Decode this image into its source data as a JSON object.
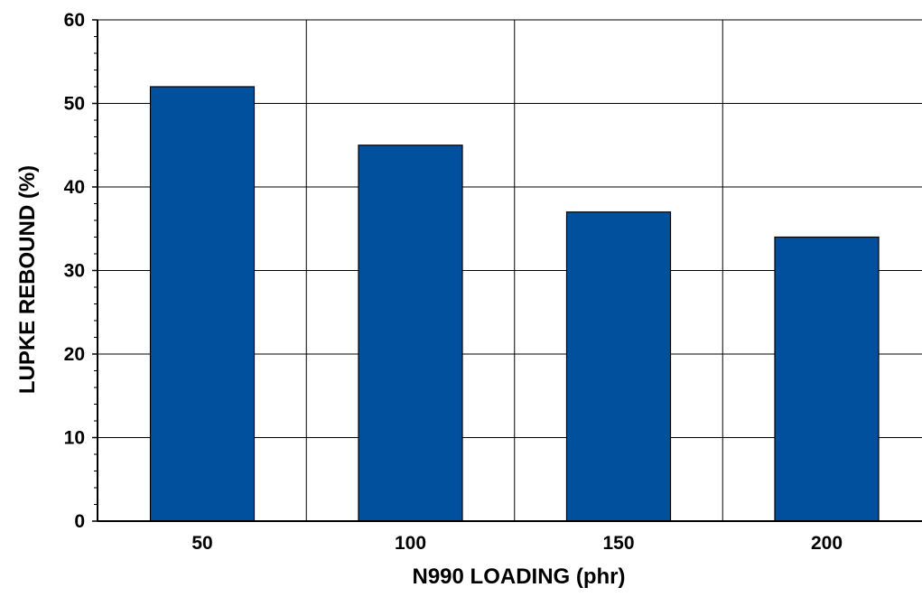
{
  "chart_data": {
    "type": "bar",
    "categories": [
      "50",
      "100",
      "150",
      "200"
    ],
    "values": [
      52,
      45,
      37,
      34
    ],
    "title": "",
    "xlabel": "N990 LOADING (phr)",
    "ylabel": "LUPKE REBOUND (%)",
    "ylim": [
      0,
      60
    ],
    "yticks": [
      "0",
      "10",
      "20",
      "30",
      "40",
      "50",
      "60"
    ],
    "grid": true,
    "bar_color": "#01509D",
    "bar_edge_color": "#000000"
  }
}
